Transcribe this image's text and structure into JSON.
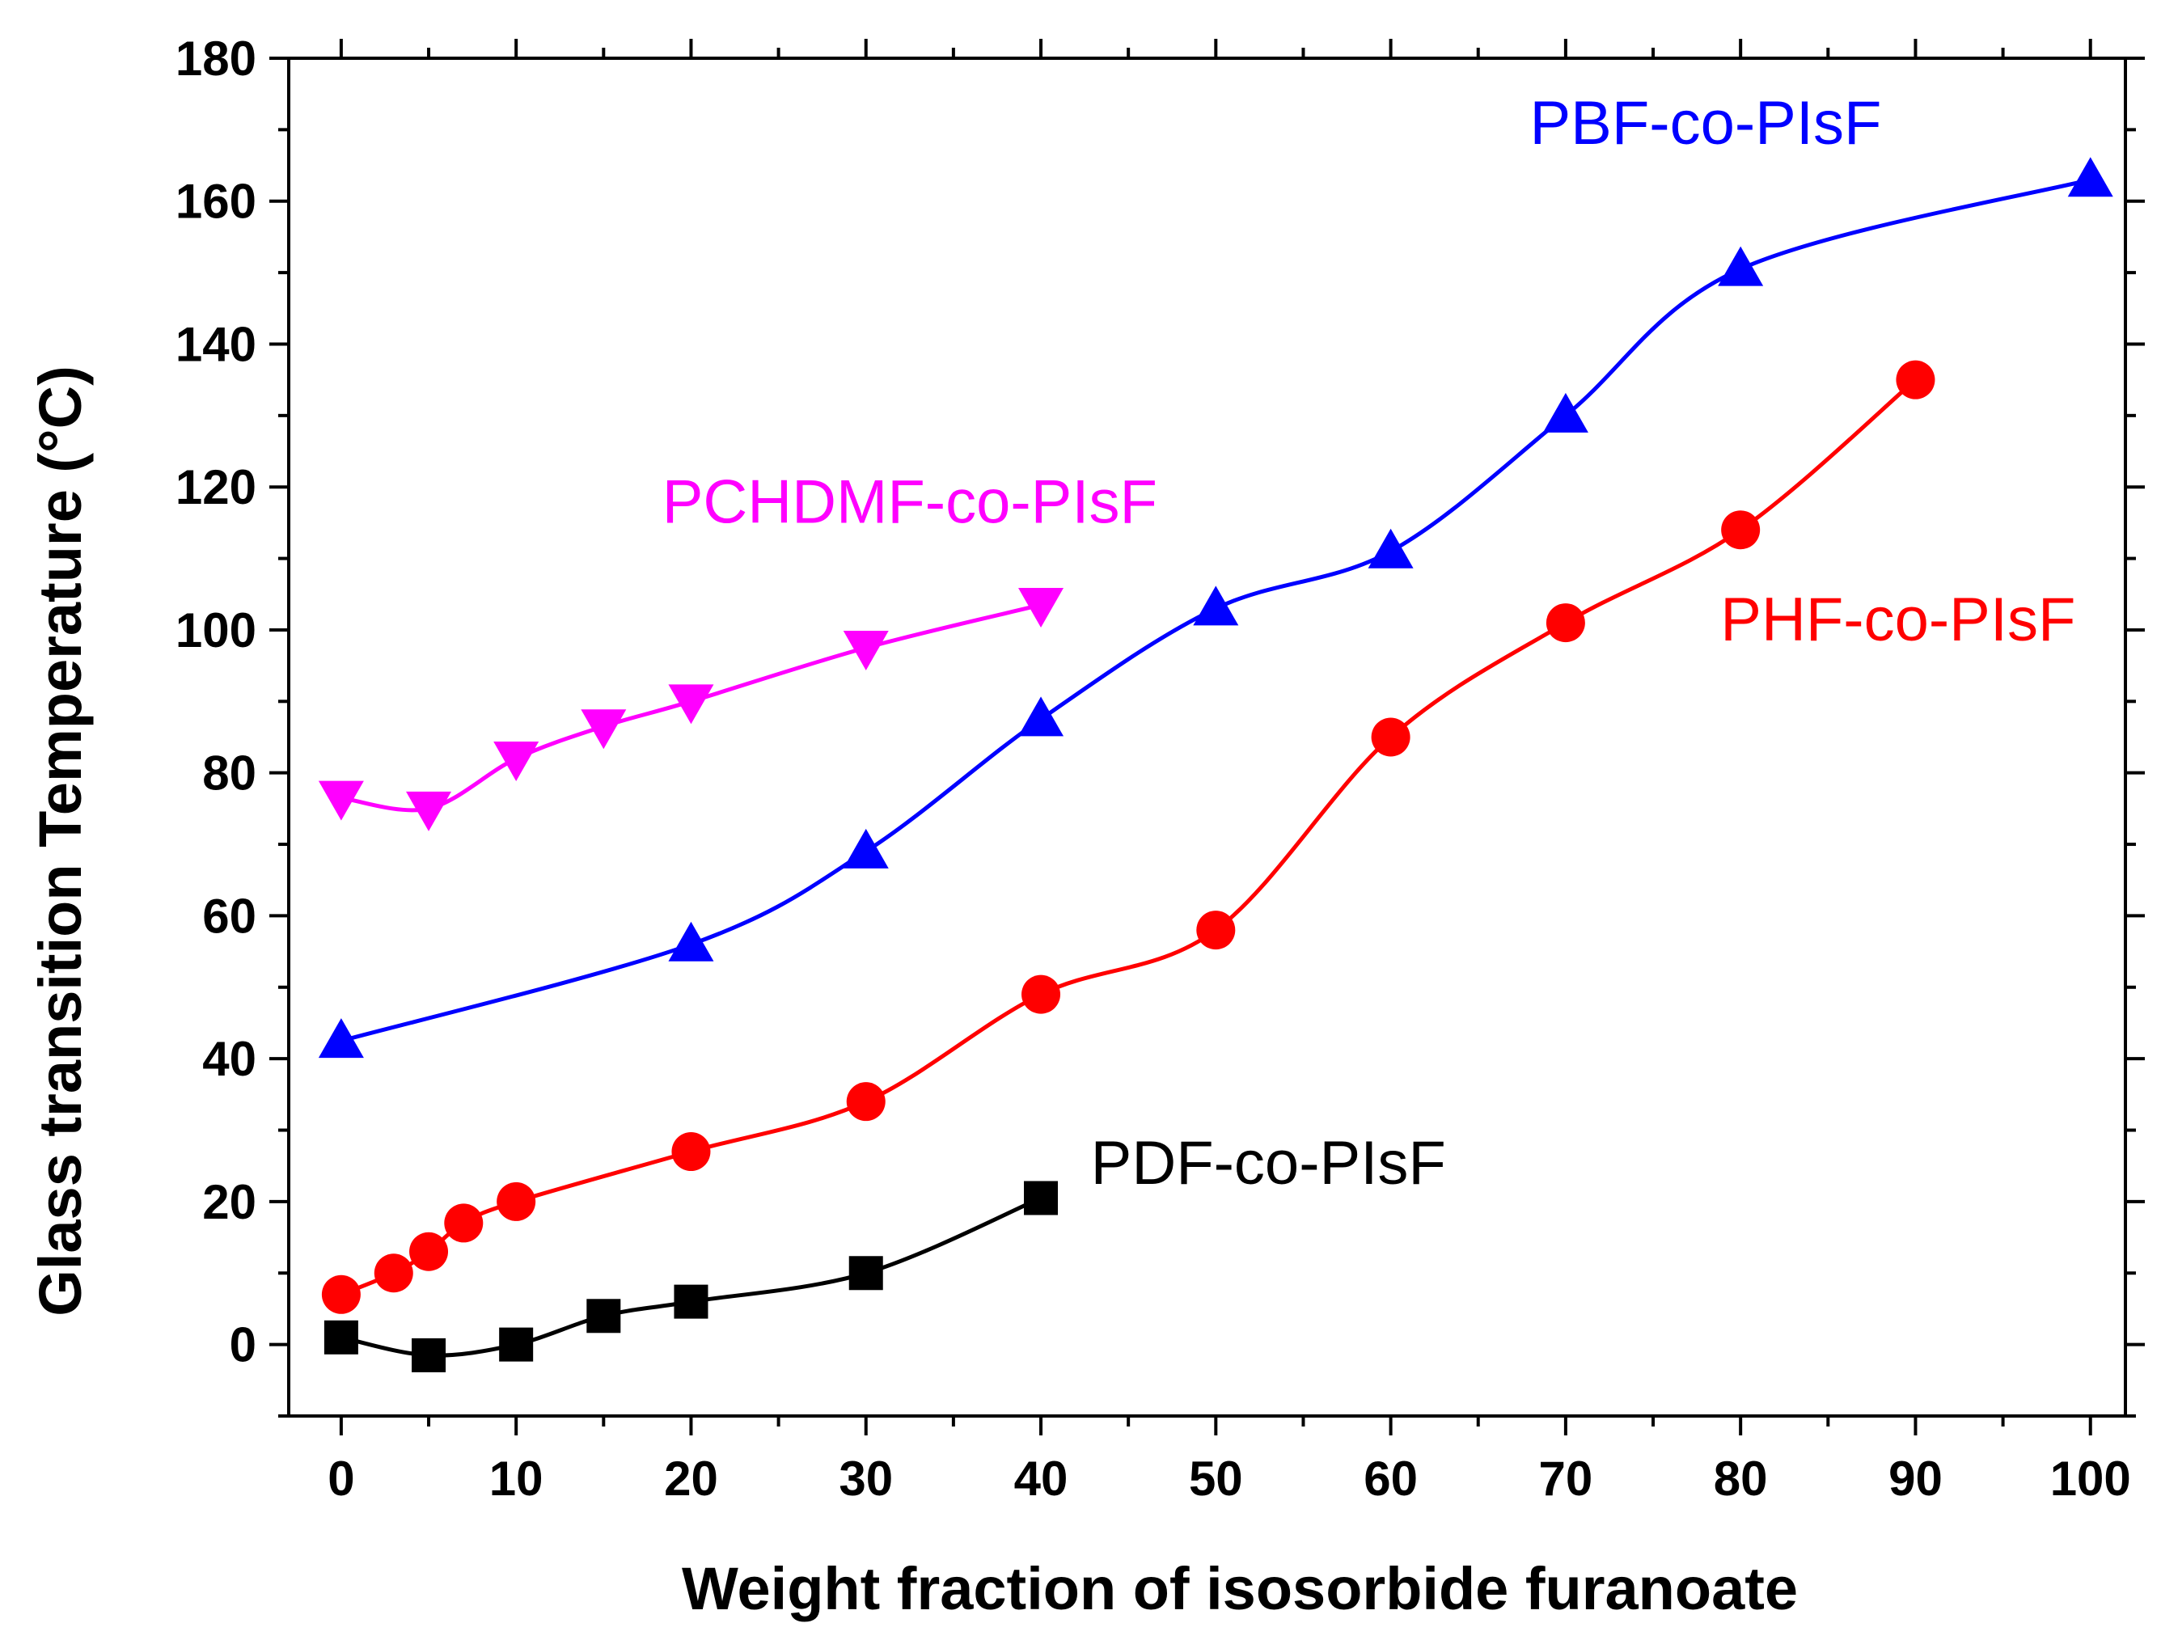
{
  "chart_data": {
    "type": "line",
    "title": "",
    "xlabel": "Weight fraction of isosorbide furanoate",
    "ylabel": "Glass transition Temperature (°C)",
    "xlim": [
      -3,
      102
    ],
    "ylim": [
      -10,
      180
    ],
    "xticks": [
      0,
      10,
      20,
      30,
      40,
      50,
      60,
      70,
      80,
      90,
      100
    ],
    "yticks": [
      0,
      20,
      40,
      60,
      80,
      100,
      120,
      140,
      160,
      180
    ],
    "xtick_labels": [
      "0",
      "10",
      "20",
      "30",
      "40",
      "50",
      "60",
      "70",
      "80",
      "90",
      "100"
    ],
    "ytick_labels": [
      "0",
      "20",
      "40",
      "60",
      "80",
      "100",
      "120",
      "140",
      "160",
      "180"
    ],
    "grid": false,
    "series": [
      {
        "name": "PCHDMF-co-PIsF",
        "color": "#ff00ff",
        "marker": "triangle-down",
        "x": [
          0,
          5,
          10,
          15,
          20,
          30,
          40
        ],
        "y": [
          76.5,
          75,
          82,
          86.5,
          90,
          97.5,
          103.5
        ]
      },
      {
        "name": "PBF-co-PIsF",
        "color": "#0000ff",
        "marker": "triangle-up",
        "x": [
          0,
          20,
          30,
          40,
          50,
          60,
          70,
          80,
          100
        ],
        "y": [
          42.5,
          56,
          69,
          87.5,
          103,
          111,
          130,
          150.5,
          163
        ]
      },
      {
        "name": "PHF-co-PIsF",
        "color": "#ff0000",
        "marker": "circle",
        "x": [
          0,
          3,
          5,
          7,
          10,
          20,
          30,
          40,
          50,
          60,
          70,
          80,
          90
        ],
        "y": [
          7,
          10,
          13,
          17,
          20,
          27,
          34,
          49,
          58,
          85,
          101,
          114,
          135
        ]
      },
      {
        "name": "PDF-co-PIsF",
        "color": "#000000",
        "marker": "square",
        "x": [
          0,
          5,
          10,
          15,
          20,
          30,
          40
        ],
        "y": [
          1,
          -1.5,
          0,
          4,
          6,
          10,
          20.5
        ]
      }
    ],
    "annotations": [
      {
        "text": "PBF-co-PIsF",
        "x": 78,
        "y": 168,
        "color": "#0000ff"
      },
      {
        "text": "PCHDMF-co-PIsF",
        "x": 32.5,
        "y": 115,
        "color": "#ff00ff"
      },
      {
        "text": "PHF-co-PIsF",
        "x": 89,
        "y": 98.5,
        "color": "#ff0000"
      },
      {
        "text": "PDF-co-PIsF",
        "x": 53,
        "y": 22.5,
        "color": "#000000"
      }
    ]
  }
}
